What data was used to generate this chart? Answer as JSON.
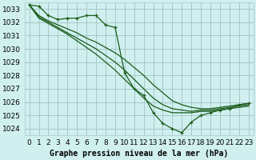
{
  "title": "Graphe pression niveau de la mer (hPa)",
  "bg_color": "#d0f0f0",
  "grid_color": "#a8c8c8",
  "line_color": "#1a5c1a",
  "series": [
    {
      "x": [
        0,
        1,
        2,
        3,
        4,
        5,
        6,
        7,
        8,
        9,
        10,
        11,
        12,
        13,
        14,
        15,
        16,
        17,
        18,
        19,
        20,
        21,
        22,
        23
      ],
      "y": [
        1033.3,
        1033.2,
        1032.5,
        1032.2,
        1032.3,
        1032.3,
        1032.5,
        1032.5,
        1031.8,
        1031.6,
        1028.2,
        1027.0,
        1026.5,
        1025.2,
        1024.4,
        1024.0,
        1023.7,
        1024.5,
        1025.0,
        1025.2,
        1025.4,
        1025.5,
        1025.8,
        1025.9
      ],
      "marker": "+"
    },
    {
      "x": [
        0,
        1,
        2,
        3,
        4,
        5,
        6,
        7,
        8,
        9,
        10,
        11,
        12,
        13,
        14,
        15,
        16,
        17,
        18,
        19,
        20,
        21,
        22,
        23
      ],
      "y": [
        1033.3,
        1032.5,
        1032.1,
        1031.8,
        1031.5,
        1031.2,
        1030.8,
        1030.5,
        1030.1,
        1029.7,
        1029.2,
        1028.6,
        1028.0,
        1027.3,
        1026.7,
        1026.1,
        1025.8,
        1025.6,
        1025.5,
        1025.5,
        1025.6,
        1025.7,
        1025.8,
        1025.9
      ],
      "marker": null
    },
    {
      "x": [
        0,
        1,
        2,
        3,
        4,
        5,
        6,
        7,
        8,
        9,
        10,
        11,
        12,
        13,
        14,
        15,
        16,
        17,
        18,
        19,
        20,
        21,
        22,
        23
      ],
      "y": [
        1033.3,
        1032.4,
        1032.0,
        1031.6,
        1031.2,
        1030.8,
        1030.4,
        1030.0,
        1029.5,
        1029.0,
        1028.4,
        1027.7,
        1027.0,
        1026.3,
        1025.8,
        1025.5,
        1025.4,
        1025.3,
        1025.4,
        1025.4,
        1025.5,
        1025.6,
        1025.7,
        1025.8
      ],
      "marker": null
    },
    {
      "x": [
        0,
        1,
        2,
        3,
        4,
        5,
        6,
        7,
        8,
        9,
        10,
        11,
        12,
        13,
        14,
        15,
        16,
        17,
        18,
        19,
        20,
        21,
        22,
        23
      ],
      "y": [
        1033.3,
        1032.3,
        1031.9,
        1031.5,
        1031.1,
        1030.6,
        1030.1,
        1029.6,
        1029.0,
        1028.4,
        1027.7,
        1027.0,
        1026.3,
        1025.7,
        1025.4,
        1025.2,
        1025.2,
        1025.2,
        1025.3,
        1025.3,
        1025.4,
        1025.5,
        1025.6,
        1025.7
      ],
      "marker": null
    }
  ],
  "ylim": [
    1023.5,
    1033.5
  ],
  "yticks": [
    1024,
    1025,
    1026,
    1027,
    1028,
    1029,
    1030,
    1031,
    1032,
    1033
  ],
  "xticks": [
    0,
    1,
    2,
    3,
    4,
    5,
    6,
    7,
    8,
    9,
    10,
    11,
    12,
    13,
    14,
    15,
    16,
    17,
    18,
    19,
    20,
    21,
    22,
    23
  ],
  "xlabel_fontsize": 6.5,
  "ylabel_fontsize": 6.5,
  "title_fontsize": 7,
  "title_fontweight": "bold"
}
